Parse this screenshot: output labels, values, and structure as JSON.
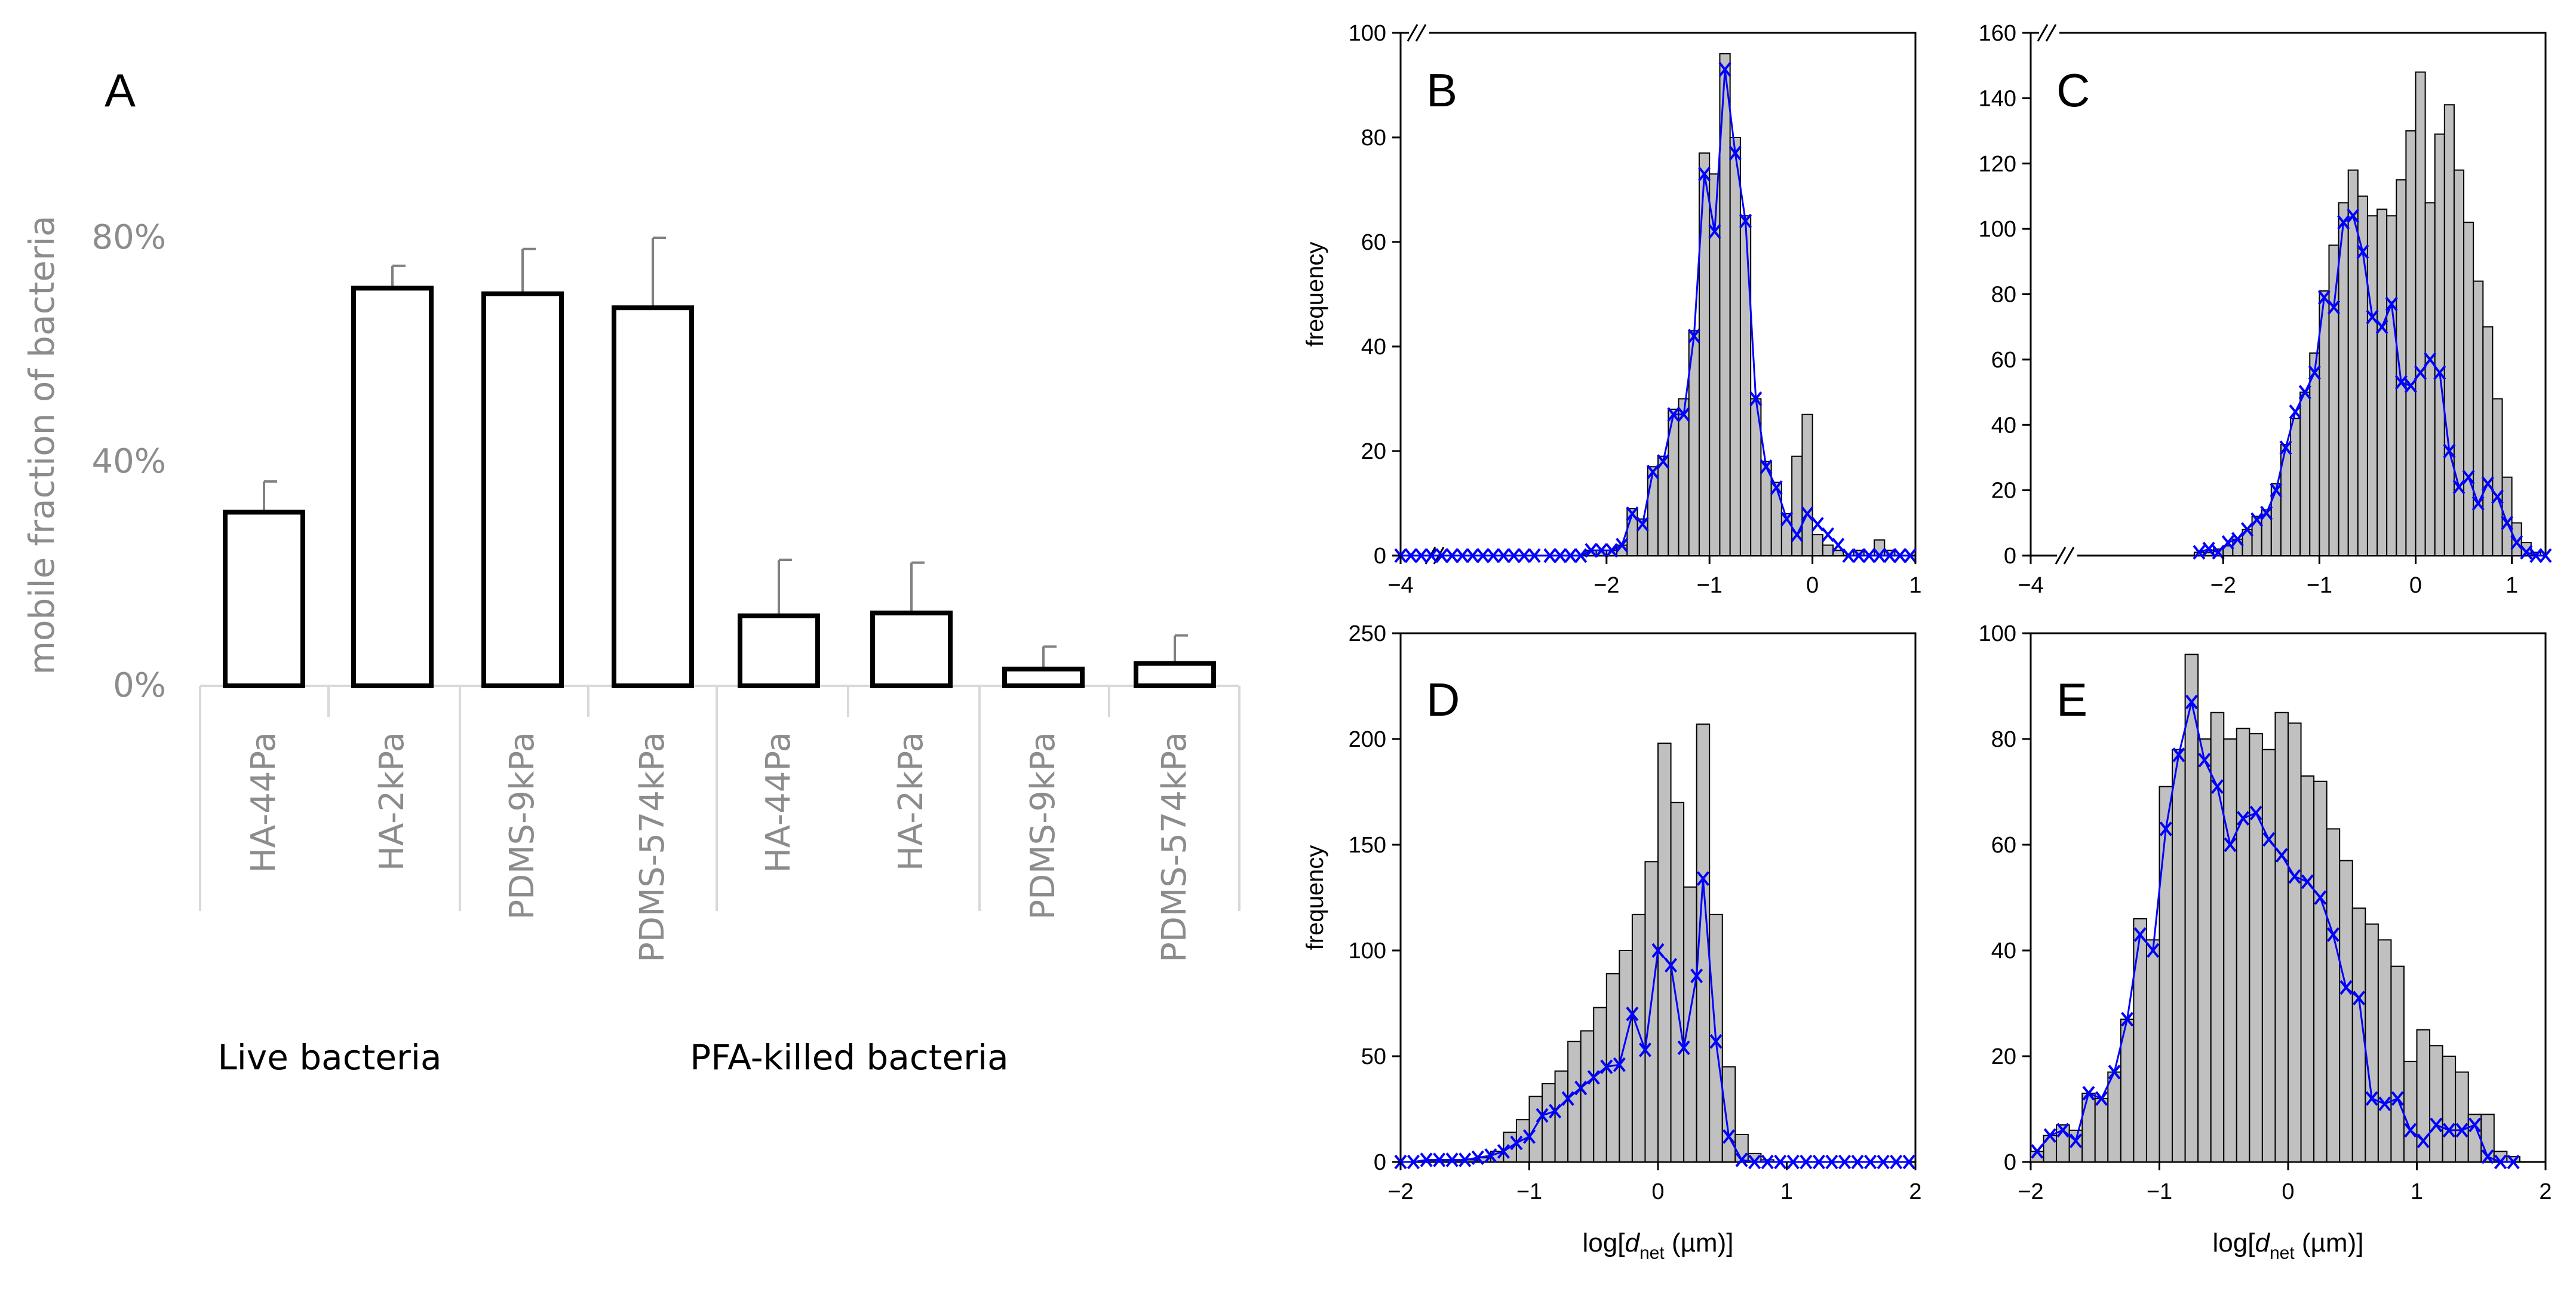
{
  "colors": {
    "bar_fill_A": "#ffffff",
    "bar_stroke_A": "#000000",
    "axis_text_A": "#8c8c8c",
    "hist_fill": "#c0c0c0",
    "hist_stroke": "#000000",
    "series_line": "#0000ff"
  },
  "chart_data": [
    {
      "panel": "A",
      "type": "bar",
      "ylabel": "mobile fraction of bacteria",
      "yticks": [
        "0%",
        "40%",
        "80%"
      ],
      "ylim": [
        0,
        80
      ],
      "categories": [
        "HA-44Pa",
        "HA-2kPa",
        "PDMS-9kPa",
        "PDMS-574kPa",
        "HA-44Pa",
        "HA-2kPa",
        "PDMS-9kPa",
        "PDMS-574kPa"
      ],
      "values": [
        31,
        71,
        70,
        67.5,
        12.5,
        13,
        3,
        4
      ],
      "errors": [
        5.5,
        4,
        8,
        12.5,
        10,
        9,
        4,
        5
      ],
      "groups": [
        {
          "label": "Live bacteria",
          "indices": [
            0,
            1,
            2,
            3
          ]
        },
        {
          "label": "PFA-killed bacteria",
          "indices": [
            4,
            5,
            6,
            7
          ]
        }
      ]
    },
    {
      "panel": "B",
      "type": "bar",
      "ylabel": "frequency",
      "xlabel": "",
      "xlim": [
        -4,
        1
      ],
      "ylim": [
        0,
        100
      ],
      "xticks": [
        -4,
        -2,
        -1,
        0,
        1
      ],
      "yticks": [
        0,
        20,
        40,
        60,
        80,
        100
      ],
      "bin_width": 0.1,
      "axis_break": true,
      "bins": [
        [
          -2.55,
          0
        ],
        [
          -2.45,
          0
        ],
        [
          -2.35,
          0
        ],
        [
          -2.25,
          0
        ],
        [
          -2.15,
          1
        ],
        [
          -2.05,
          1
        ],
        [
          -1.95,
          1
        ],
        [
          -1.85,
          2
        ],
        [
          -1.75,
          9
        ],
        [
          -1.65,
          7
        ],
        [
          -1.55,
          17
        ],
        [
          -1.45,
          19
        ],
        [
          -1.35,
          28
        ],
        [
          -1.25,
          30
        ],
        [
          -1.15,
          43
        ],
        [
          -1.05,
          77
        ],
        [
          -0.95,
          73
        ],
        [
          -0.85,
          96
        ],
        [
          -0.75,
          80
        ],
        [
          -0.65,
          65
        ],
        [
          -0.55,
          30
        ],
        [
          -0.45,
          18
        ],
        [
          -0.35,
          14
        ],
        [
          -0.25,
          8
        ],
        [
          -0.15,
          19
        ],
        [
          -0.05,
          27
        ],
        [
          0.05,
          4
        ],
        [
          0.15,
          2
        ],
        [
          0.25,
          1
        ],
        [
          0.35,
          0
        ],
        [
          0.45,
          1
        ],
        [
          0.55,
          0
        ],
        [
          0.65,
          3
        ],
        [
          0.75,
          1
        ],
        [
          0.85,
          0
        ],
        [
          0.95,
          0
        ]
      ],
      "series": [
        {
          "name": "fit",
          "x": [
            -4.0,
            -3.9,
            -3.8,
            -3.7,
            -3.6,
            -3.5,
            -3.4,
            -3.3,
            -3.2,
            -3.1,
            -3.0,
            -2.9,
            -2.8,
            -2.7,
            -2.55,
            -2.45,
            -2.35,
            -2.25,
            -2.15,
            -2.05,
            -1.95,
            -1.85,
            -1.75,
            -1.65,
            -1.55,
            -1.45,
            -1.35,
            -1.25,
            -1.15,
            -1.05,
            -0.95,
            -0.85,
            -0.75,
            -0.65,
            -0.55,
            -0.45,
            -0.35,
            -0.25,
            -0.15,
            -0.05,
            0.05,
            0.15,
            0.25,
            0.35,
            0.45,
            0.55,
            0.65,
            0.75,
            0.85,
            0.95
          ],
          "y": [
            0,
            0,
            0,
            0,
            0,
            0,
            0,
            0,
            0,
            0,
            0,
            0,
            0,
            0,
            0,
            0,
            0,
            0,
            1,
            1,
            1,
            2,
            8,
            6,
            16,
            18,
            27,
            27,
            42,
            73,
            62,
            93,
            77,
            64,
            30,
            17,
            13,
            7,
            4,
            8,
            6,
            4,
            2,
            0,
            0,
            0,
            0,
            0,
            0,
            0
          ]
        }
      ]
    },
    {
      "panel": "C",
      "type": "bar",
      "ylabel": "",
      "xlabel": "",
      "xlim": [
        -4,
        1.35
      ],
      "ylim": [
        0,
        160
      ],
      "xticks": [
        -4,
        -2,
        -1,
        0,
        1
      ],
      "yticks": [
        0,
        20,
        40,
        60,
        80,
        100,
        120,
        140,
        160
      ],
      "bin_width": 0.1,
      "axis_break": true,
      "bins": [
        [
          -2.25,
          1
        ],
        [
          -2.15,
          1
        ],
        [
          -2.05,
          2
        ],
        [
          -1.95,
          3
        ],
        [
          -1.85,
          5
        ],
        [
          -1.75,
          8
        ],
        [
          -1.65,
          12
        ],
        [
          -1.55,
          14
        ],
        [
          -1.45,
          22
        ],
        [
          -1.35,
          34
        ],
        [
          -1.25,
          42
        ],
        [
          -1.15,
          50
        ],
        [
          -1.05,
          62
        ],
        [
          -0.95,
          81
        ],
        [
          -0.85,
          95
        ],
        [
          -0.75,
          108
        ],
        [
          -0.65,
          118
        ],
        [
          -0.55,
          110
        ],
        [
          -0.45,
          104
        ],
        [
          -0.35,
          106
        ],
        [
          -0.25,
          104
        ],
        [
          -0.15,
          115
        ],
        [
          -0.05,
          130
        ],
        [
          0.05,
          148
        ],
        [
          0.15,
          108
        ],
        [
          0.25,
          129
        ],
        [
          0.35,
          138
        ],
        [
          0.45,
          118
        ],
        [
          0.55,
          102
        ],
        [
          0.65,
          84
        ],
        [
          0.75,
          70
        ],
        [
          0.85,
          48
        ],
        [
          0.95,
          24
        ],
        [
          1.05,
          10
        ],
        [
          1.15,
          4
        ],
        [
          1.25,
          1
        ]
      ],
      "series": [
        {
          "name": "fit",
          "x": [
            -2.25,
            -2.15,
            -2.05,
            -1.95,
            -1.85,
            -1.75,
            -1.65,
            -1.55,
            -1.45,
            -1.35,
            -1.25,
            -1.15,
            -1.05,
            -0.95,
            -0.85,
            -0.75,
            -0.65,
            -0.55,
            -0.45,
            -0.35,
            -0.25,
            -0.15,
            -0.05,
            0.05,
            0.15,
            0.25,
            0.35,
            0.45,
            0.55,
            0.65,
            0.75,
            0.85,
            0.95,
            1.05,
            1.15,
            1.25,
            1.35
          ],
          "y": [
            1,
            2,
            1,
            4,
            5,
            8,
            11,
            13,
            20,
            33,
            44,
            50,
            56,
            79,
            76,
            102,
            104,
            93,
            73,
            70,
            77,
            53,
            52,
            56,
            60,
            56,
            32,
            21,
            24,
            16,
            22,
            18,
            10,
            4,
            1,
            0,
            0
          ]
        }
      ]
    },
    {
      "panel": "D",
      "type": "bar",
      "ylabel": "frequency",
      "xlabel": "log[d_net (µm)]",
      "xlim": [
        -2,
        2
      ],
      "ylim": [
        0,
        250
      ],
      "xticks": [
        -2,
        -1,
        0,
        1,
        2
      ],
      "yticks": [
        0,
        50,
        100,
        150,
        200,
        250
      ],
      "bin_width": 0.1,
      "axis_break": false,
      "bins": [
        [
          -1.45,
          1
        ],
        [
          -1.35,
          2
        ],
        [
          -1.25,
          5
        ],
        [
          -1.15,
          14
        ],
        [
          -1.05,
          20
        ],
        [
          -0.95,
          31
        ],
        [
          -0.85,
          37
        ],
        [
          -0.75,
          43
        ],
        [
          -0.65,
          57
        ],
        [
          -0.55,
          62
        ],
        [
          -0.45,
          73
        ],
        [
          -0.35,
          89
        ],
        [
          -0.25,
          100
        ],
        [
          -0.15,
          117
        ],
        [
          -0.05,
          142
        ],
        [
          0.05,
          198
        ],
        [
          0.15,
          170
        ],
        [
          0.25,
          130
        ],
        [
          0.35,
          207
        ],
        [
          0.45,
          117
        ],
        [
          0.55,
          45
        ],
        [
          0.65,
          13
        ],
        [
          0.75,
          4
        ],
        [
          0.85,
          1
        ]
      ],
      "series": [
        {
          "name": "fit",
          "x": [
            -2.0,
            -1.9,
            -1.8,
            -1.7,
            -1.6,
            -1.5,
            -1.4,
            -1.3,
            -1.2,
            -1.1,
            -1.0,
            -0.9,
            -0.8,
            -0.7,
            -0.6,
            -0.5,
            -0.4,
            -0.3,
            -0.2,
            -0.1,
            0.0,
            0.1,
            0.2,
            0.3,
            0.35,
            0.45,
            0.55,
            0.65,
            0.75,
            0.85,
            0.95,
            1.05,
            1.15,
            1.25,
            1.35,
            1.45,
            1.55,
            1.65,
            1.75,
            1.85,
            1.95
          ],
          "y": [
            0,
            0,
            1,
            1,
            1,
            1,
            2,
            3,
            5,
            9,
            12,
            22,
            24,
            30,
            35,
            40,
            45,
            46,
            70,
            53,
            100,
            93,
            54,
            88,
            134,
            57,
            12,
            1,
            0,
            0,
            0,
            0,
            0,
            0,
            0,
            0,
            0,
            0,
            0,
            0,
            0
          ]
        }
      ]
    },
    {
      "panel": "E",
      "type": "bar",
      "ylabel": "",
      "xlabel": "log[d_net (µm)]",
      "xlim": [
        -2,
        2
      ],
      "ylim": [
        0,
        100
      ],
      "xticks": [
        -2,
        -1,
        0,
        1,
        2
      ],
      "yticks": [
        0,
        20,
        40,
        60,
        80,
        100
      ],
      "bin_width": 0.1,
      "axis_break": false,
      "bins": [
        [
          -1.95,
          2
        ],
        [
          -1.85,
          5
        ],
        [
          -1.75,
          7
        ],
        [
          -1.65,
          6
        ],
        [
          -1.55,
          13
        ],
        [
          -1.45,
          12
        ],
        [
          -1.35,
          17
        ],
        [
          -1.25,
          27
        ],
        [
          -1.15,
          46
        ],
        [
          -1.05,
          42
        ],
        [
          -0.95,
          71
        ],
        [
          -0.85,
          78
        ],
        [
          -0.75,
          96
        ],
        [
          -0.65,
          80
        ],
        [
          -0.55,
          85
        ],
        [
          -0.45,
          80
        ],
        [
          -0.35,
          82
        ],
        [
          -0.25,
          81
        ],
        [
          -0.15,
          78
        ],
        [
          -0.05,
          85
        ],
        [
          0.05,
          83
        ],
        [
          0.15,
          73
        ],
        [
          0.25,
          72
        ],
        [
          0.35,
          63
        ],
        [
          0.45,
          57
        ],
        [
          0.55,
          48
        ],
        [
          0.65,
          45
        ],
        [
          0.75,
          42
        ],
        [
          0.85,
          37
        ],
        [
          0.95,
          19
        ],
        [
          1.05,
          25
        ],
        [
          1.15,
          22
        ],
        [
          1.25,
          20
        ],
        [
          1.35,
          17
        ],
        [
          1.45,
          9
        ],
        [
          1.55,
          9
        ],
        [
          1.65,
          2
        ],
        [
          1.75,
          1
        ]
      ],
      "series": [
        {
          "name": "fit",
          "x": [
            -1.95,
            -1.85,
            -1.75,
            -1.65,
            -1.55,
            -1.45,
            -1.35,
            -1.25,
            -1.15,
            -1.05,
            -0.95,
            -0.85,
            -0.75,
            -0.65,
            -0.55,
            -0.45,
            -0.35,
            -0.25,
            -0.15,
            -0.05,
            0.05,
            0.15,
            0.25,
            0.35,
            0.45,
            0.55,
            0.65,
            0.75,
            0.85,
            0.95,
            1.05,
            1.15,
            1.25,
            1.35,
            1.45,
            1.55,
            1.65,
            1.75
          ],
          "y": [
            2,
            5,
            6,
            4,
            13,
            12,
            17,
            27,
            43,
            40,
            63,
            77,
            87,
            76,
            71,
            60,
            65,
            66,
            61,
            58,
            54,
            53,
            50,
            43,
            33,
            31,
            12,
            11,
            12,
            6,
            4,
            7,
            6,
            6,
            7,
            1,
            0,
            0
          ]
        }
      ]
    }
  ]
}
